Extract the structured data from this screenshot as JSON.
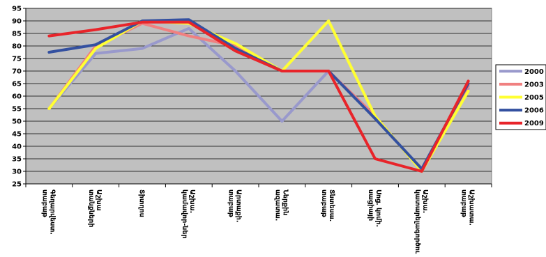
{
  "chart_data": {
    "type": "line",
    "title": "",
    "xlabel": "",
    "ylabel": "",
    "ylim": [
      25,
      95
    ],
    "yticks": [
      25,
      30,
      35,
      40,
      45,
      50,
      55,
      60,
      65,
      70,
      75,
      80,
      85,
      90,
      95
    ],
    "grid": true,
    "legend_position": "right",
    "plot_background": "#c0c0c0",
    "categories": [
      [
        "Գեղարվեստ.",
        "տաբաթ"
      ],
      [
        "Աշխա",
        "տանքների"
      ],
      [
        "Տիտղոս"
      ],
      [
        "Աշխա.",
        "կամավոր-ներ"
      ],
      [
        "Արտաքի.",
        "տաբաթ"
      ],
      [
        "Ներքին",
        "ազատա."
      ],
      [
        "Տնտեսա.",
        "տաբաթ"
      ],
      [
        "Սոց. կոմի.",
        "սացիայի"
      ],
      [
        "Աշխա.",
        "կատարելագործում"
      ],
      [
        "Աշխատա.",
        "տաբաթ"
      ]
    ],
    "series": [
      {
        "name": "2000",
        "color": "#9999cc",
        "values": [
          55,
          77,
          79,
          87,
          70,
          50,
          70,
          52,
          30,
          63
        ]
      },
      {
        "name": "2003",
        "color": "#f08080",
        "values": [
          55,
          80,
          89,
          84,
          80,
          70,
          70,
          52,
          30,
          64
        ]
      },
      {
        "name": "2005",
        "color": "#ffff33",
        "values": [
          55,
          79,
          90,
          89,
          81,
          70,
          90,
          52,
          30,
          62
        ]
      },
      {
        "name": "2006",
        "color": "#3350a0",
        "values": [
          77.5,
          80.5,
          90,
          90.5,
          79,
          70,
          70,
          51,
          31,
          65
        ]
      },
      {
        "name": "2009",
        "color": "#e8242a",
        "values": [
          84,
          86.5,
          89.5,
          89.5,
          78,
          70,
          70,
          35,
          30,
          66
        ]
      }
    ]
  }
}
